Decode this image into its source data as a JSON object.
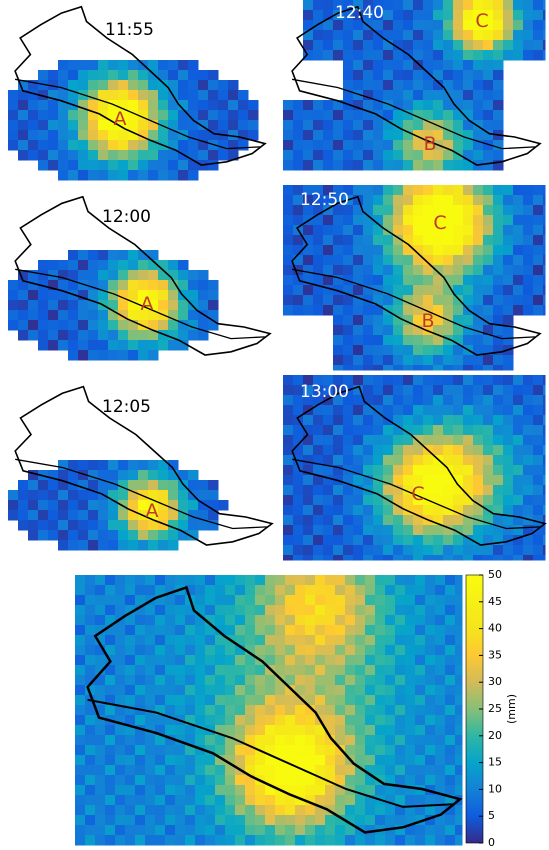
{
  "panels": [
    {
      "time": "11:55",
      "markers": [
        "A"
      ]
    },
    {
      "time": "12:00",
      "markers": [
        "A"
      ]
    },
    {
      "time": "12:05",
      "markers": [
        "A"
      ]
    },
    {
      "time": "12:40",
      "markers": [
        "C",
        "B"
      ]
    },
    {
      "time": "12:50",
      "markers": [
        "C",
        "B"
      ]
    },
    {
      "time": "13:00",
      "markers": [
        "C"
      ]
    }
  ],
  "colorbar": {
    "label": "(mm)",
    "clim": [
      0,
      50
    ],
    "ticks": [
      0,
      5,
      10,
      15,
      20,
      25,
      30,
      35,
      40,
      45,
      50
    ]
  }
}
